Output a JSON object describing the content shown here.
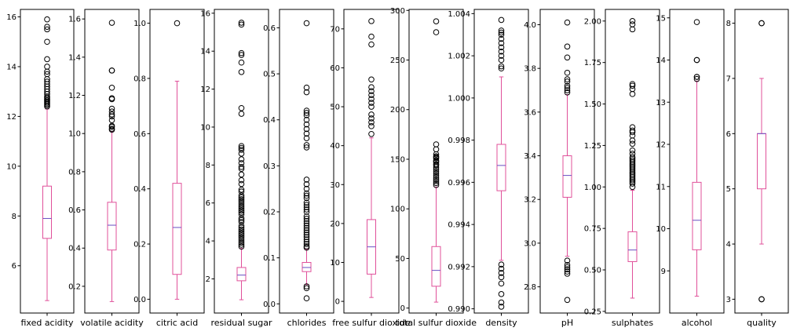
{
  "figure": {
    "background": "#ffffff"
  },
  "style": {
    "box_color": "#e0509a",
    "median_color": "#6a4fc2",
    "flier_color": "#000000",
    "axis_color": "#000000"
  },
  "chart_data": [
    {
      "type": "box",
      "xlabel": "fixed acidity",
      "ylim": [
        4.1,
        16.3
      ],
      "ticks": [
        6,
        8,
        10,
        12,
        14,
        16
      ],
      "tick_labels": [
        "6",
        "8",
        "10",
        "12",
        "14",
        "16"
      ],
      "q1": 7.1,
      "median": 7.9,
      "q3": 9.2,
      "whisker_low": 4.6,
      "whisker_high": 12.3,
      "fliers": [
        12.4,
        12.45,
        12.5,
        12.55,
        12.6,
        12.65,
        12.7,
        12.75,
        12.8,
        12.9,
        13.0,
        13.1,
        13.2,
        13.3,
        13.4,
        13.5,
        13.7,
        13.8,
        14.0,
        14.3,
        15.0,
        15.5,
        15.6,
        15.9
      ]
    },
    {
      "type": "box",
      "xlabel": "volatile acidity",
      "ylim": [
        0.06,
        1.65
      ],
      "ticks": [
        0.2,
        0.4,
        0.6,
        0.8,
        1.0,
        1.2,
        1.4,
        1.6
      ],
      "tick_labels": [
        "0.2",
        "0.4",
        "0.6",
        "0.8",
        "1.0",
        "1.2",
        "1.4",
        "1.6"
      ],
      "q1": 0.39,
      "median": 0.52,
      "q3": 0.64,
      "whisker_low": 0.12,
      "whisker_high": 1.01,
      "fliers": [
        1.02,
        1.025,
        1.035,
        1.04,
        1.07,
        1.09,
        1.1,
        1.115,
        1.13,
        1.18,
        1.185,
        1.24,
        1.33,
        1.33,
        1.58
      ]
    },
    {
      "type": "box",
      "xlabel": "citric acid",
      "ylim": [
        -0.05,
        1.05
      ],
      "ticks": [
        0.0,
        0.2,
        0.4,
        0.6,
        0.8,
        1.0
      ],
      "tick_labels": [
        "0.0",
        "0.2",
        "0.4",
        "0.6",
        "0.8",
        "1.0"
      ],
      "q1": 0.09,
      "median": 0.26,
      "q3": 0.42,
      "whisker_low": 0.0,
      "whisker_high": 0.79,
      "fliers": [
        1.0
      ]
    },
    {
      "type": "box",
      "xlabel": "residual sugar",
      "ylim": [
        0.2,
        16.2
      ],
      "ticks": [
        2,
        4,
        6,
        8,
        10,
        12,
        14,
        16
      ],
      "tick_labels": [
        "2",
        "4",
        "6",
        "8",
        "10",
        "12",
        "14",
        "16"
      ],
      "q1": 1.9,
      "median": 2.2,
      "q3": 2.6,
      "whisker_low": 0.9,
      "whisker_high": 3.6,
      "fliers": [
        3.7,
        3.8,
        3.9,
        4.0,
        4.1,
        4.2,
        4.3,
        4.4,
        4.5,
        4.6,
        4.7,
        4.8,
        5.0,
        5.1,
        5.2,
        5.4,
        5.5,
        5.6,
        5.7,
        5.8,
        5.9,
        6.0,
        6.1,
        6.2,
        6.3,
        6.4,
        6.6,
        6.7,
        7.0,
        7.2,
        7.5,
        7.8,
        7.9,
        8.1,
        8.3,
        8.6,
        8.8,
        8.9,
        9.0,
        10.7,
        11.0,
        12.9,
        13.4,
        13.8,
        13.9,
        15.4,
        15.5
      ]
    },
    {
      "type": "box",
      "xlabel": "chlorides",
      "ylim": [
        -0.02,
        0.64
      ],
      "ticks": [
        0.0,
        0.1,
        0.2,
        0.3,
        0.4,
        0.5,
        0.6
      ],
      "tick_labels": [
        "0.0",
        "0.1",
        "0.2",
        "0.3",
        "0.4",
        "0.5",
        "0.6"
      ],
      "q1": 0.07,
      "median": 0.079,
      "q3": 0.09,
      "whisker_low": 0.042,
      "whisker_high": 0.119,
      "fliers": [
        0.012,
        0.034,
        0.038,
        0.122,
        0.125,
        0.13,
        0.135,
        0.14,
        0.145,
        0.15,
        0.155,
        0.16,
        0.165,
        0.17,
        0.175,
        0.18,
        0.185,
        0.19,
        0.2,
        0.205,
        0.21,
        0.215,
        0.22,
        0.23,
        0.235,
        0.24,
        0.25,
        0.26,
        0.27,
        0.34,
        0.345,
        0.36,
        0.37,
        0.38,
        0.39,
        0.4,
        0.41,
        0.415,
        0.42,
        0.46,
        0.47,
        0.61
      ]
    },
    {
      "type": "box",
      "xlabel": "free sulfur dioxide",
      "ylim": [
        -3,
        75
      ],
      "ticks": [
        0,
        10,
        20,
        30,
        40,
        50,
        60,
        70
      ],
      "tick_labels": [
        "0",
        "10",
        "20",
        "30",
        "40",
        "50",
        "60",
        "70"
      ],
      "q1": 7,
      "median": 14,
      "q3": 21,
      "whisker_low": 1,
      "whisker_high": 42,
      "fliers": [
        43,
        45,
        46,
        47,
        48,
        50,
        51,
        52,
        53,
        54,
        55,
        57,
        66,
        68,
        72
      ]
    },
    {
      "type": "box",
      "xlabel": "total sulfur dioxide",
      "ylim": [
        -5,
        301
      ],
      "ticks": [
        0,
        50,
        100,
        150,
        200,
        250,
        300
      ],
      "tick_labels": [
        "0",
        "50",
        "100",
        "150",
        "200",
        "250",
        "300"
      ],
      "q1": 22,
      "median": 38,
      "q3": 62,
      "whisker_low": 6,
      "whisker_high": 122,
      "fliers": [
        124,
        126,
        128,
        130,
        132,
        134,
        136,
        138,
        140,
        142,
        144,
        145,
        147,
        148,
        149,
        151,
        152,
        153,
        155,
        160,
        165,
        278,
        289
      ]
    },
    {
      "type": "box",
      "xlabel": "density",
      "ylim": [
        0.9898,
        1.0042
      ],
      "ticks": [
        0.99,
        0.992,
        0.994,
        0.996,
        0.998,
        1.0,
        1.002,
        1.004
      ],
      "tick_labels": [
        "0.990",
        "0.992",
        "0.994",
        "0.996",
        "0.998",
        "1.000",
        "1.002",
        "1.004"
      ],
      "q1": 0.9956,
      "median": 0.9968,
      "q3": 0.9978,
      "whisker_low": 0.9923,
      "whisker_high": 1.001,
      "fliers": [
        0.9901,
        0.9903,
        0.9907,
        0.9912,
        0.9915,
        0.9917,
        0.9919,
        0.9921,
        1.0014,
        1.0015,
        1.0018,
        1.002,
        1.0022,
        1.0024,
        1.0026,
        1.0028,
        1.003,
        1.0031,
        1.0032,
        1.0037
      ]
    },
    {
      "type": "box",
      "xlabel": "pH",
      "ylim": [
        2.68,
        4.07
      ],
      "ticks": [
        2.8,
        3.0,
        3.2,
        3.4,
        3.6,
        3.8,
        4.0
      ],
      "tick_labels": [
        "2.8",
        "3.0",
        "3.2",
        "3.4",
        "3.6",
        "3.8",
        "4.0"
      ],
      "q1": 3.21,
      "median": 3.31,
      "q3": 3.4,
      "whisker_low": 2.94,
      "whisker_high": 3.68,
      "fliers": [
        2.74,
        2.86,
        2.87,
        2.88,
        2.89,
        2.9,
        2.92,
        3.69,
        3.7,
        3.71,
        3.72,
        3.74,
        3.75,
        3.78,
        3.85,
        3.9,
        4.01
      ]
    },
    {
      "type": "box",
      "xlabel": "sulphates",
      "ylim": [
        0.24,
        2.07
      ],
      "ticks": [
        0.25,
        0.5,
        0.75,
        1.0,
        1.25,
        1.5,
        1.75,
        2.0
      ],
      "tick_labels": [
        "0.25",
        "0.50",
        "0.75",
        "1.00",
        "1.25",
        "1.50",
        "1.75",
        "2.00"
      ],
      "q1": 0.55,
      "median": 0.62,
      "q3": 0.73,
      "whisker_low": 0.33,
      "whisker_high": 0.98,
      "fliers": [
        1.0,
        1.02,
        1.03,
        1.04,
        1.05,
        1.06,
        1.07,
        1.08,
        1.09,
        1.1,
        1.11,
        1.12,
        1.13,
        1.14,
        1.15,
        1.16,
        1.17,
        1.18,
        1.2,
        1.22,
        1.26,
        1.28,
        1.31,
        1.33,
        1.34,
        1.36,
        1.56,
        1.59,
        1.61,
        1.62,
        1.95,
        1.98,
        2.0
      ]
    },
    {
      "type": "box",
      "xlabel": "alcohol",
      "ylim": [
        8.0,
        15.2
      ],
      "ticks": [
        9,
        10,
        11,
        12,
        13,
        14,
        15
      ],
      "tick_labels": [
        "9",
        "10",
        "11",
        "12",
        "13",
        "14",
        "15"
      ],
      "q1": 9.5,
      "median": 10.2,
      "q3": 11.1,
      "whisker_low": 8.4,
      "whisker_high": 13.5,
      "fliers": [
        13.55,
        13.6,
        13.6,
        14.0,
        14.0,
        14.9
      ]
    },
    {
      "type": "box",
      "xlabel": "quality",
      "ylim": [
        2.75,
        8.25
      ],
      "ticks": [
        3,
        4,
        5,
        6,
        7,
        8
      ],
      "tick_labels": [
        "3",
        "4",
        "5",
        "6",
        "7",
        "8"
      ],
      "q1": 5,
      "median": 6,
      "q3": 6,
      "whisker_low": 4,
      "whisker_high": 7,
      "fliers": [
        3,
        3,
        8,
        8
      ]
    }
  ]
}
